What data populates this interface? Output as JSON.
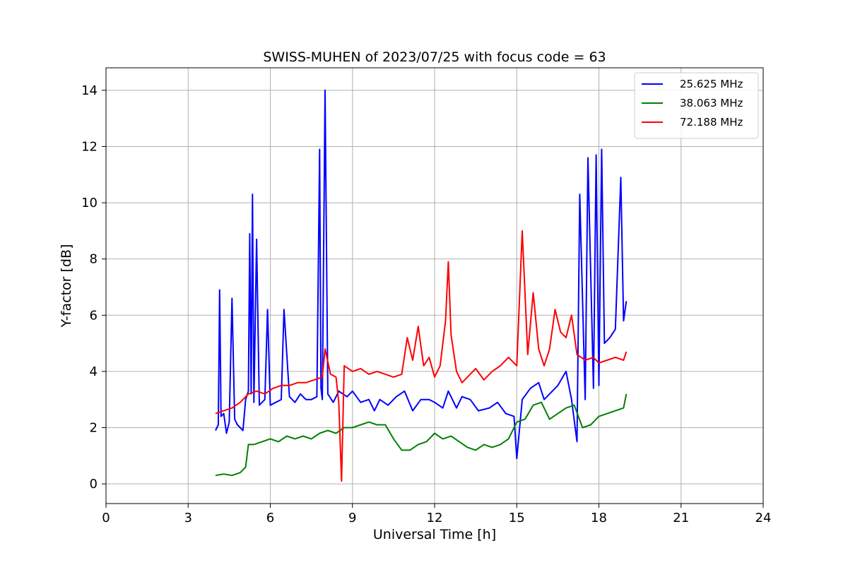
{
  "chart_data": {
    "type": "line",
    "title": "SWISS-MUHEN of 2023/07/25 with focus code = 63",
    "xlabel": "Universal Time [h]",
    "ylabel": "Y-factor [dB]",
    "xlim": [
      0,
      24
    ],
    "ylim": [
      -0.7,
      14.8
    ],
    "xticks": [
      0,
      3,
      6,
      9,
      12,
      15,
      18,
      21,
      24
    ],
    "yticks": [
      0,
      2,
      4,
      6,
      8,
      10,
      12,
      14
    ],
    "grid": true,
    "legend_position": "top-right",
    "series": [
      {
        "name": "25.625 MHz",
        "color": "#0000ff",
        "x": [
          4.0,
          4.1,
          4.15,
          4.2,
          4.3,
          4.4,
          4.5,
          4.6,
          4.7,
          4.8,
          5.0,
          5.1,
          5.2,
          5.25,
          5.3,
          5.35,
          5.4,
          5.5,
          5.6,
          5.8,
          5.9,
          6.0,
          6.2,
          6.4,
          6.5,
          6.7,
          6.9,
          7.1,
          7.3,
          7.5,
          7.7,
          7.8,
          7.85,
          7.9,
          8.0,
          8.1,
          8.3,
          8.5,
          8.8,
          9.0,
          9.3,
          9.6,
          9.8,
          10.0,
          10.3,
          10.6,
          10.9,
          11.2,
          11.5,
          11.8,
          12.0,
          12.3,
          12.5,
          12.8,
          13.0,
          13.3,
          13.6,
          14.0,
          14.3,
          14.6,
          14.9,
          15.0,
          15.2,
          15.5,
          15.8,
          16.0,
          16.3,
          16.5,
          16.8,
          17.0,
          17.2,
          17.3,
          17.5,
          17.6,
          17.8,
          17.9,
          18.0,
          18.1,
          18.2,
          18.4,
          18.6,
          18.8,
          18.9,
          19.0
        ],
        "y": [
          1.9,
          2.1,
          6.9,
          2.4,
          2.5,
          1.8,
          2.2,
          6.6,
          2.3,
          2.1,
          1.9,
          3.0,
          3.3,
          8.9,
          3.2,
          10.3,
          2.9,
          8.7,
          2.8,
          3.0,
          6.2,
          2.8,
          2.9,
          3.0,
          6.2,
          3.1,
          2.9,
          3.2,
          3.0,
          3.0,
          3.1,
          11.9,
          3.4,
          3.0,
          14.0,
          3.2,
          2.9,
          3.3,
          3.1,
          3.3,
          2.9,
          3.0,
          2.6,
          3.0,
          2.8,
          3.1,
          3.3,
          2.6,
          3.0,
          3.0,
          2.9,
          2.7,
          3.3,
          2.7,
          3.1,
          3.0,
          2.6,
          2.7,
          2.9,
          2.5,
          2.4,
          0.9,
          3.0,
          3.4,
          3.6,
          3.0,
          3.3,
          3.5,
          4.0,
          3.0,
          1.5,
          10.3,
          3.0,
          11.6,
          3.4,
          11.7,
          3.5,
          11.9,
          5.0,
          5.2,
          5.5,
          10.9,
          5.8,
          6.5
        ]
      },
      {
        "name": "38.063 MHz",
        "color": "#008000",
        "x": [
          4.0,
          4.3,
          4.6,
          4.9,
          5.1,
          5.2,
          5.4,
          5.7,
          6.0,
          6.3,
          6.6,
          6.9,
          7.2,
          7.5,
          7.8,
          8.1,
          8.4,
          8.7,
          9.0,
          9.3,
          9.6,
          9.9,
          10.2,
          10.5,
          10.8,
          11.1,
          11.4,
          11.7,
          12.0,
          12.3,
          12.6,
          12.9,
          13.2,
          13.5,
          13.8,
          14.1,
          14.4,
          14.7,
          15.0,
          15.3,
          15.6,
          15.9,
          16.2,
          16.5,
          16.8,
          17.1,
          17.4,
          17.7,
          18.0,
          18.3,
          18.6,
          18.9,
          19.0
        ],
        "y": [
          0.3,
          0.35,
          0.3,
          0.4,
          0.6,
          1.4,
          1.4,
          1.5,
          1.6,
          1.5,
          1.7,
          1.6,
          1.7,
          1.6,
          1.8,
          1.9,
          1.8,
          2.0,
          2.0,
          2.1,
          2.2,
          2.1,
          2.1,
          1.6,
          1.2,
          1.2,
          1.4,
          1.5,
          1.8,
          1.6,
          1.7,
          1.5,
          1.3,
          1.2,
          1.4,
          1.3,
          1.4,
          1.6,
          2.2,
          2.3,
          2.8,
          2.9,
          2.3,
          2.5,
          2.7,
          2.8,
          2.0,
          2.1,
          2.4,
          2.5,
          2.6,
          2.7,
          3.2
        ]
      },
      {
        "name": "72.188 MHz",
        "color": "#ff0000",
        "x": [
          4.0,
          4.3,
          4.6,
          4.9,
          5.2,
          5.5,
          5.8,
          6.1,
          6.4,
          6.7,
          7.0,
          7.3,
          7.6,
          7.9,
          8.0,
          8.2,
          8.4,
          8.5,
          8.6,
          8.7,
          9.0,
          9.3,
          9.6,
          9.9,
          10.2,
          10.5,
          10.8,
          11.0,
          11.2,
          11.4,
          11.6,
          11.8,
          12.0,
          12.2,
          12.4,
          12.5,
          12.6,
          12.8,
          13.0,
          13.2,
          13.5,
          13.8,
          14.1,
          14.4,
          14.7,
          15.0,
          15.2,
          15.4,
          15.6,
          15.8,
          16.0,
          16.2,
          16.4,
          16.6,
          16.8,
          17.0,
          17.2,
          17.5,
          17.8,
          18.0,
          18.3,
          18.6,
          18.9,
          19.0
        ],
        "y": [
          2.5,
          2.6,
          2.7,
          2.9,
          3.2,
          3.3,
          3.2,
          3.4,
          3.5,
          3.5,
          3.6,
          3.6,
          3.7,
          3.8,
          4.8,
          3.9,
          3.8,
          2.9,
          0.1,
          4.2,
          4.0,
          4.1,
          3.9,
          4.0,
          3.9,
          3.8,
          3.9,
          5.2,
          4.4,
          5.6,
          4.2,
          4.5,
          3.8,
          4.2,
          5.8,
          7.9,
          5.3,
          4.0,
          3.6,
          3.8,
          4.1,
          3.7,
          4.0,
          4.2,
          4.5,
          4.2,
          9.0,
          4.6,
          6.8,
          4.8,
          4.2,
          4.8,
          6.2,
          5.4,
          5.2,
          6.0,
          4.6,
          4.4,
          4.5,
          4.3,
          4.4,
          4.5,
          4.4,
          4.7
        ]
      }
    ]
  }
}
